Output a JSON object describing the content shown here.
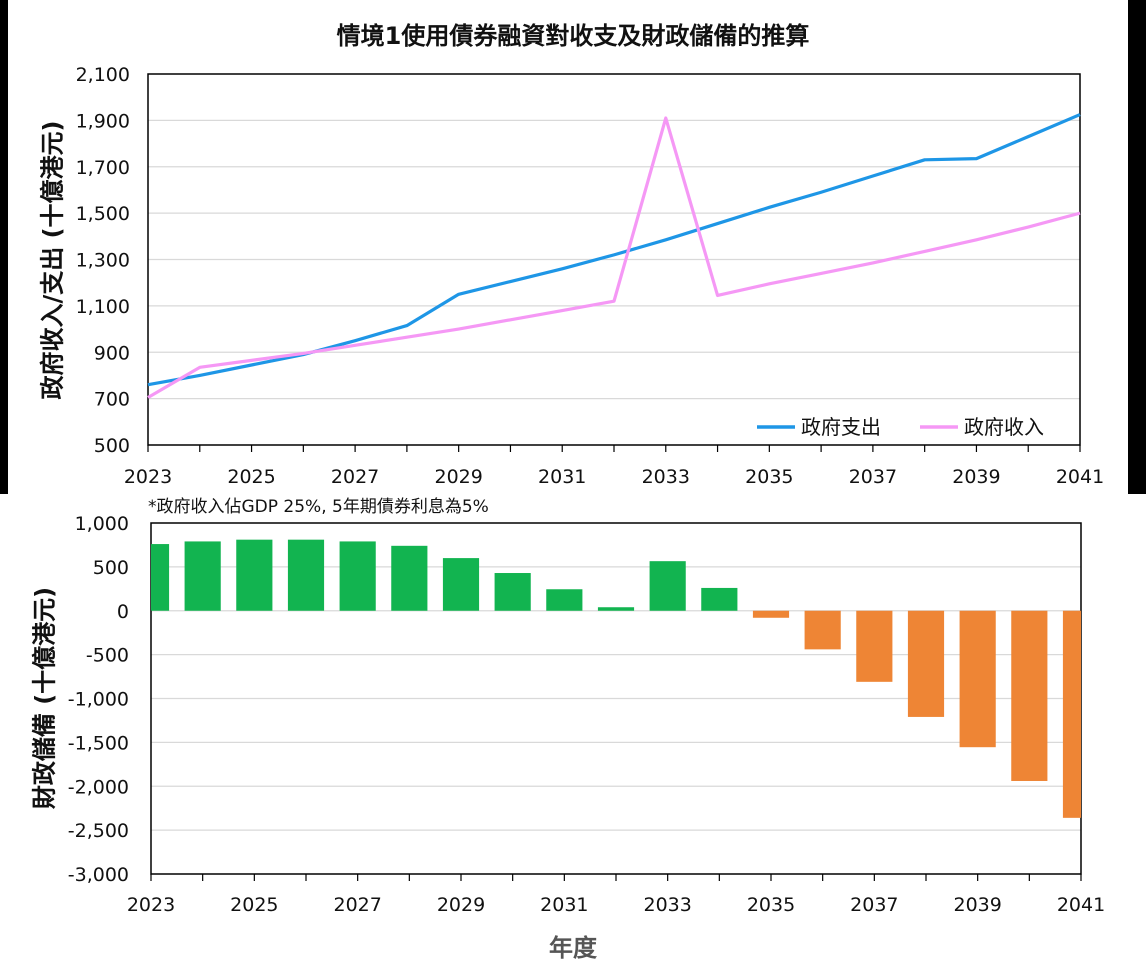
{
  "title": "情境1使用債券融資對收支及財政儲備的推算",
  "note": "*政府收入佔GDP 25%, 5年期債券利息為5%",
  "x_axis_title": "年度",
  "colors": {
    "expenditure": "#1E96E6",
    "revenue": "#F598F5",
    "reserve_positive": "#12B450",
    "reserve_negative": "#EE8535",
    "gridline": "#D9D9D9",
    "axis": "#000000"
  },
  "chart_data": [
    {
      "type": "line",
      "ylabel": "政府收入/支出 (十億港元)",
      "xlabel": "",
      "x": [
        2023,
        2024,
        2025,
        2026,
        2027,
        2028,
        2029,
        2030,
        2031,
        2032,
        2033,
        2034,
        2035,
        2036,
        2037,
        2038,
        2039,
        2040,
        2041
      ],
      "xticks": [
        "2023",
        "2025",
        "2027",
        "2029",
        "2031",
        "2033",
        "2035",
        "2037",
        "2039",
        "2041"
      ],
      "ylim": [
        500,
        2100
      ],
      "yticks": [
        "500",
        "700",
        "900",
        "1,100",
        "1,300",
        "1,500",
        "1,700",
        "1,900",
        "2,100"
      ],
      "ytick_values": [
        500,
        700,
        900,
        1100,
        1300,
        1500,
        1700,
        1900,
        2100
      ],
      "grid": true,
      "legend": "bottom-right",
      "series": [
        {
          "name": "政府支出",
          "color": "#1E96E6",
          "values": [
            760,
            800,
            845,
            890,
            950,
            1015,
            1150,
            1205,
            1260,
            1320,
            1385,
            1455,
            1525,
            1590,
            1660,
            1730,
            1735,
            1830,
            1925
          ]
        },
        {
          "name": "政府收入",
          "color": "#F598F5",
          "values": [
            705,
            835,
            865,
            895,
            930,
            965,
            1000,
            1040,
            1080,
            1120,
            1910,
            1145,
            1195,
            1240,
            1285,
            1335,
            1385,
            1440,
            1500
          ]
        }
      ]
    },
    {
      "type": "bar",
      "ylabel": "財政儲備 (十億港元)",
      "xlabel": "年度",
      "x": [
        2023,
        2024,
        2025,
        2026,
        2027,
        2028,
        2029,
        2030,
        2031,
        2032,
        2033,
        2034,
        2035,
        2036,
        2037,
        2038,
        2039,
        2040,
        2041
      ],
      "xticks": [
        "2023",
        "2025",
        "2027",
        "2029",
        "2031",
        "2033",
        "2035",
        "2037",
        "2039",
        "2041"
      ],
      "ylim": [
        -3000,
        1000
      ],
      "yticks": [
        "1,000",
        "500",
        "0",
        "-500",
        "-1,000",
        "-1,500",
        "-2,000",
        "-2,500",
        "-3,000"
      ],
      "ytick_values": [
        1000,
        500,
        0,
        -500,
        -1000,
        -1500,
        -2000,
        -2500,
        -3000
      ],
      "grid": true,
      "values": [
        760,
        790,
        810,
        810,
        790,
        740,
        600,
        430,
        245,
        40,
        565,
        260,
        -80,
        -440,
        -810,
        -1210,
        -1555,
        -1940,
        -2360
      ]
    }
  ]
}
